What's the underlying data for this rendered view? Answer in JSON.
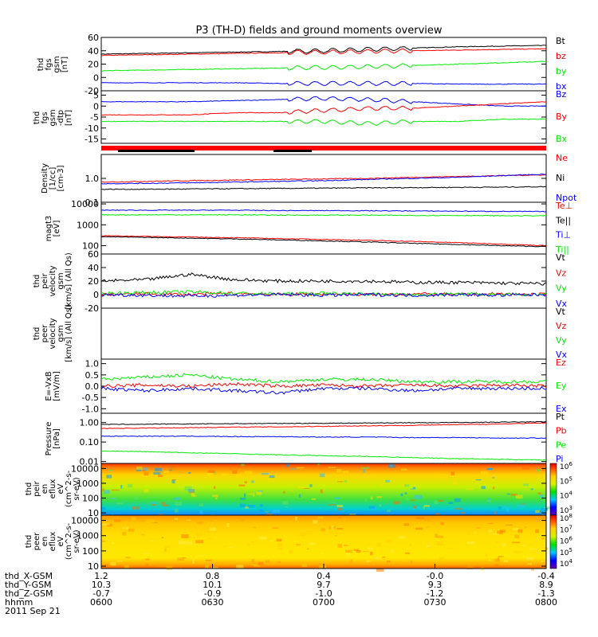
{
  "title": "P3 (TH-D) fields and ground moments overview",
  "footer_date": "2011 Sep 21",
  "colors": {
    "black": "#000000",
    "red": "#ff0000",
    "green": "#00ee00",
    "blue": "#0000ff"
  },
  "chart_data": [
    {
      "type": "line",
      "ylabel": "thd fgs gsm [nT]",
      "ylabel_lines": [
        "thd",
        "fgs",
        "gsm",
        "[nT]"
      ],
      "ylim": [
        -20,
        60
      ],
      "ticks": [
        -20,
        0,
        20,
        40,
        60
      ],
      "legend": [
        "Bt",
        "bz",
        "by",
        "bx"
      ],
      "series": [
        {
          "name": "Bt",
          "color": "black",
          "values": [
            35,
            36,
            37,
            38,
            39,
            40,
            42,
            44,
            46,
            47,
            48
          ]
        },
        {
          "name": "bz",
          "color": "red",
          "values": [
            33,
            34,
            35,
            36,
            37,
            38,
            39,
            40,
            41,
            42,
            43
          ]
        },
        {
          "name": "by",
          "color": "green",
          "values": [
            10,
            11,
            12,
            13,
            14,
            15,
            16,
            18,
            20,
            22,
            24
          ]
        },
        {
          "name": "bx",
          "color": "blue",
          "values": [
            -8,
            -8,
            -8,
            -8,
            -9,
            -9,
            -9,
            -9,
            -10,
            -10,
            -10
          ]
        }
      ]
    },
    {
      "type": "line",
      "ylabel": "thd fgs gsm -dtp [nT]",
      "ylabel_lines": [
        "thd",
        "fgs",
        "gsm",
        "-dtp",
        "[nT]"
      ],
      "ylim": [
        -17,
        7
      ],
      "ticks": [
        -15,
        -10,
        -5,
        0,
        5
      ],
      "legend": [
        "Bz",
        "By",
        "Bx"
      ],
      "series": [
        {
          "name": "Bz",
          "color": "blue",
          "values": [
            2,
            2,
            2,
            2.5,
            3,
            3.5,
            3,
            2,
            1,
            0,
            0
          ]
        },
        {
          "name": "By",
          "color": "red",
          "values": [
            -4,
            -4,
            -4,
            -3,
            -3,
            -2,
            -1,
            -1,
            0,
            1,
            2
          ]
        },
        {
          "name": "Bx",
          "color": "green",
          "values": [
            -7,
            -7,
            -7,
            -7,
            -7,
            -7,
            -8,
            -7,
            -7,
            -6,
            -6
          ]
        }
      ]
    },
    {
      "type": "line",
      "ylabel": "Density [1/cc] [cm-3]",
      "ylabel_lines": [
        "Density",
        "[1/cc]",
        "[cm-3]"
      ],
      "scale": "log",
      "ylim": [
        0.1,
        10
      ],
      "ticks": [
        0.1,
        1.0
      ],
      "tick_labels": [
        "0.1",
        "1.0"
      ],
      "legend": [
        "Ne",
        "Ni",
        "Npot"
      ],
      "series": [
        {
          "name": "Ne",
          "color": "red",
          "values": [
            0.7,
            0.75,
            0.8,
            0.85,
            0.9,
            0.95,
            1.0,
            1.1,
            1.2,
            1.3,
            1.4
          ]
        },
        {
          "name": "Ni",
          "color": "black",
          "values": [
            0.35,
            0.35,
            0.36,
            0.37,
            0.38,
            0.39,
            0.4,
            0.41,
            0.42,
            0.43,
            0.45
          ]
        },
        {
          "name": "Npot",
          "color": "blue",
          "values": [
            0.6,
            0.62,
            0.65,
            0.7,
            0.75,
            0.8,
            0.9,
            1.0,
            1.1,
            1.3,
            1.5
          ]
        }
      ]
    },
    {
      "type": "line",
      "ylabel": "magt3 [eV]",
      "ylabel_lines": [
        "magt3",
        "[eV]"
      ],
      "scale": "log",
      "ylim": [
        40,
        12000
      ],
      "ticks": [
        100,
        1000,
        10000
      ],
      "tick_labels": [
        "100",
        "1000",
        "10000"
      ],
      "legend": [
        "Te⊥",
        "Te||",
        "Ti⊥",
        "Ti||"
      ],
      "series": [
        {
          "name": "Te⊥",
          "color": "red",
          "values": [
            300,
            280,
            260,
            240,
            220,
            200,
            180,
            160,
            140,
            120,
            100
          ]
        },
        {
          "name": "Te||",
          "color": "black",
          "values": [
            270,
            250,
            230,
            210,
            190,
            170,
            150,
            130,
            115,
            100,
            90
          ]
        },
        {
          "name": "Ti⊥",
          "color": "blue",
          "values": [
            5000,
            5000,
            5000,
            5000,
            4800,
            4800,
            4700,
            4600,
            4500,
            4400,
            4300
          ]
        },
        {
          "name": "Ti||",
          "color": "green",
          "values": [
            3000,
            3000,
            3000,
            3000,
            2900,
            2900,
            2900,
            2800,
            2800,
            2700,
            2700
          ]
        }
      ]
    },
    {
      "type": "line",
      "ylabel": "thd peir velocity gsm [km/s] (All Qs)",
      "ylabel_lines": [
        "thd",
        "peir",
        "velocity",
        "gsm",
        "[km/s] (All Qs)"
      ],
      "ylim": [
        -20,
        60
      ],
      "ticks": [
        -20,
        0,
        20,
        40,
        60
      ],
      "legend": [
        "Vt",
        "Vz",
        "Vy",
        "Vx"
      ],
      "series": [
        {
          "name": "Vt",
          "color": "black",
          "values": [
            20,
            22,
            30,
            22,
            20,
            20,
            20,
            18,
            18,
            17,
            16
          ]
        },
        {
          "name": "Vz",
          "color": "red",
          "values": [
            0,
            1,
            0,
            2,
            0,
            1,
            0,
            1,
            0,
            1,
            0
          ]
        },
        {
          "name": "Vy",
          "color": "green",
          "values": [
            2,
            3,
            4,
            2,
            1,
            2,
            1,
            0,
            1,
            0,
            0
          ]
        },
        {
          "name": "Vx",
          "color": "blue",
          "values": [
            0,
            -1,
            -2,
            -1,
            0,
            -1,
            0,
            -1,
            0,
            -1,
            0
          ]
        }
      ]
    },
    {
      "type": "line",
      "ylabel": "thd peer velocity gsm [km/s] (All Qs)",
      "ylabel_lines": [
        "thd",
        "peer",
        "velocity",
        "gsm",
        "[km/s] (All Qs)"
      ],
      "legend": [
        "Vt",
        "Vz",
        "Vy",
        "Vx"
      ],
      "series": []
    },
    {
      "type": "line",
      "ylabel": "E=-VxB [mV/m]",
      "ylabel_lines": [
        "E=-VxB",
        "[mV/m]"
      ],
      "ylim": [
        -1.2,
        1.2
      ],
      "ticks": [
        -1.0,
        -0.5,
        0.0,
        0.5,
        1.0
      ],
      "tick_labels": [
        "-1.0",
        "-0.5",
        "0.0",
        "0.5",
        "1.0"
      ],
      "legend": [
        "Ez",
        "Ey",
        "Ex"
      ],
      "series": [
        {
          "name": "Ez",
          "color": "red",
          "values": [
            0.0,
            0.05,
            0.0,
            0.1,
            0.0,
            0.05,
            0.0,
            0.05,
            0.0,
            0.05,
            0.0
          ]
        },
        {
          "name": "Ey",
          "color": "green",
          "values": [
            0.3,
            0.4,
            0.5,
            0.3,
            0.2,
            0.3,
            0.3,
            0.2,
            0.2,
            0.2,
            0.2
          ]
        },
        {
          "name": "Ex",
          "color": "blue",
          "values": [
            -0.1,
            -0.2,
            -0.1,
            -0.2,
            -0.3,
            -0.1,
            -0.1,
            -0.2,
            -0.1,
            -0.1,
            -0.1
          ]
        }
      ]
    },
    {
      "type": "line",
      "ylabel": "Pressure [nPa]",
      "ylabel_lines": [
        "Pressure",
        "[nPa]"
      ],
      "scale": "log",
      "ylim": [
        0.008,
        3
      ],
      "ticks": [
        0.01,
        0.1,
        1.0
      ],
      "tick_labels": [
        "0.01",
        "0.10",
        "1.00"
      ],
      "legend": [
        "Pt",
        "Pb",
        "Pe",
        "Pi"
      ],
      "series": [
        {
          "name": "Pt",
          "color": "black",
          "values": [
            0.8,
            0.82,
            0.85,
            0.88,
            0.9,
            0.92,
            0.95,
            0.98,
            1.0,
            1.05,
            1.1
          ]
        },
        {
          "name": "Pb",
          "color": "red",
          "values": [
            0.5,
            0.52,
            0.55,
            0.58,
            0.6,
            0.64,
            0.68,
            0.72,
            0.78,
            0.85,
            0.95
          ]
        },
        {
          "name": "Pe",
          "color": "green",
          "values": [
            0.035,
            0.032,
            0.028,
            0.025,
            0.022,
            0.02,
            0.018,
            0.016,
            0.014,
            0.013,
            0.012
          ]
        },
        {
          "name": "Pi",
          "color": "blue",
          "values": [
            0.2,
            0.2,
            0.2,
            0.19,
            0.19,
            0.18,
            0.18,
            0.17,
            0.17,
            0.16,
            0.16
          ]
        }
      ]
    },
    {
      "type": "heatmap",
      "ylabel": "thd peir en eflux eV (cm^2-s-sr-eV)",
      "ylabel_lines": [
        "thd",
        "peir",
        "en",
        "eflux",
        "eV",
        "(cm^2-s-",
        "sr-eV)"
      ],
      "scale": "log",
      "ylim": [
        7,
        22000
      ],
      "ticks": [
        10,
        100,
        1000,
        10000
      ],
      "tick_labels": [
        "10",
        "100",
        "1000",
        "10000"
      ],
      "colorbar_ticks": [
        "10^3",
        "10^4",
        "10^5",
        "10^6"
      ]
    },
    {
      "type": "heatmap",
      "ylabel": "thd peer en eflux eV (cm^2-s-sr-eV)",
      "ylabel_lines": [
        "thd",
        "peer",
        "en",
        "eflux",
        "eV",
        "(cm^2-s-",
        "sr-eV)"
      ],
      "scale": "log",
      "ylim": [
        7,
        22000
      ],
      "ticks": [
        10,
        100,
        1000,
        10000
      ],
      "tick_labels": [
        "10",
        "100",
        "1000",
        "10000"
      ],
      "colorbar_ticks": [
        "10^4",
        "10^5",
        "10^6",
        "10^7",
        "10^8"
      ]
    }
  ],
  "xaxis": {
    "row_labels": [
      "thd_X-GSM",
      "thd_Y-GSM",
      "thd_Z-GSM",
      "hhmm"
    ],
    "columns": [
      [
        "1.2",
        "10.3",
        "-0.7",
        "0600"
      ],
      [
        "0.8",
        "10.1",
        "-0.9",
        "0630"
      ],
      [
        "0.4",
        "9.7",
        "-1.0",
        "0700"
      ],
      [
        "-0.0",
        "9.3",
        "-1.2",
        "0730"
      ],
      [
        "-0.4",
        "8.9",
        "-1.3",
        "0800"
      ]
    ]
  }
}
